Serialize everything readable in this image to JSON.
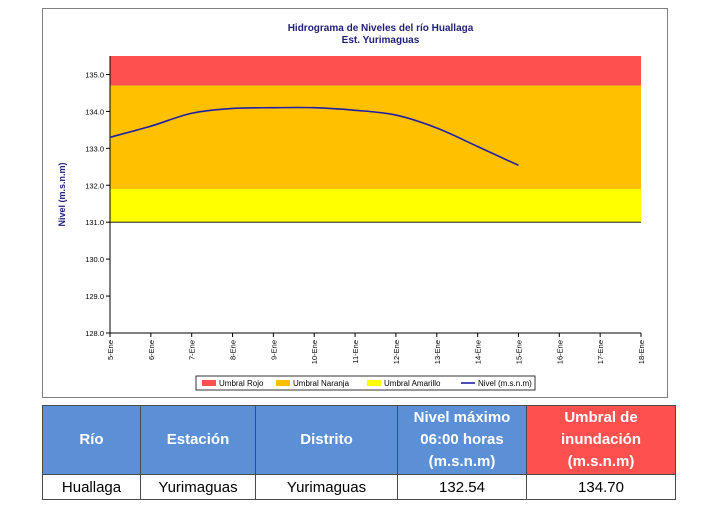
{
  "chart_data": {
    "type": "line",
    "title": "Hidrograma de Niveles del río Huallaga",
    "subtitle": "Est. Yurimaguas",
    "ylabel": "Nivel (m.s.n.m)",
    "xlabel": "",
    "ylim": [
      128.0,
      135.5
    ],
    "yticks": [
      "128.0",
      "129.0",
      "130.0",
      "131.0",
      "132.0",
      "133.0",
      "134.0",
      "135.0"
    ],
    "categories": [
      "5-Ene",
      "6-Ene",
      "7-Ene",
      "8-Ene",
      "9-Ene",
      "10-Ene",
      "11-Ene",
      "12-Ene",
      "13-Ene",
      "14-Ene",
      "15-Ene",
      "16-Ene",
      "17-Ene",
      "18-Ene"
    ],
    "bands": [
      {
        "name": "Umbral Rojo",
        "from": 134.7,
        "to": 135.5,
        "color": "#ff5050"
      },
      {
        "name": "Umbral Naranja",
        "from": 131.9,
        "to": 134.7,
        "color": "#ffc000"
      },
      {
        "name": "Umbral Amarillo",
        "from": 131.0,
        "to": 131.9,
        "color": "#ffff00"
      }
    ],
    "series": [
      {
        "name": "Nivel (m.s.n.m)",
        "color": "#1f1fa8",
        "values": [
          133.3,
          133.6,
          133.95,
          134.08,
          134.1,
          134.1,
          134.03,
          133.9,
          133.55,
          133.05,
          132.54,
          null,
          null,
          null
        ]
      }
    ],
    "legend_position": "bottom",
    "grid": false
  },
  "table": {
    "headers": [
      "Río",
      "Estación",
      "Distrito",
      "Nivel máximo 06:00 horas (m.s.n.m)",
      "Umbral de inundación (m.s.n.m)"
    ],
    "rows": [
      [
        "Huallaga",
        "Yurimaguas",
        "Yurimaguas",
        "132.54",
        "134.70"
      ]
    ]
  }
}
